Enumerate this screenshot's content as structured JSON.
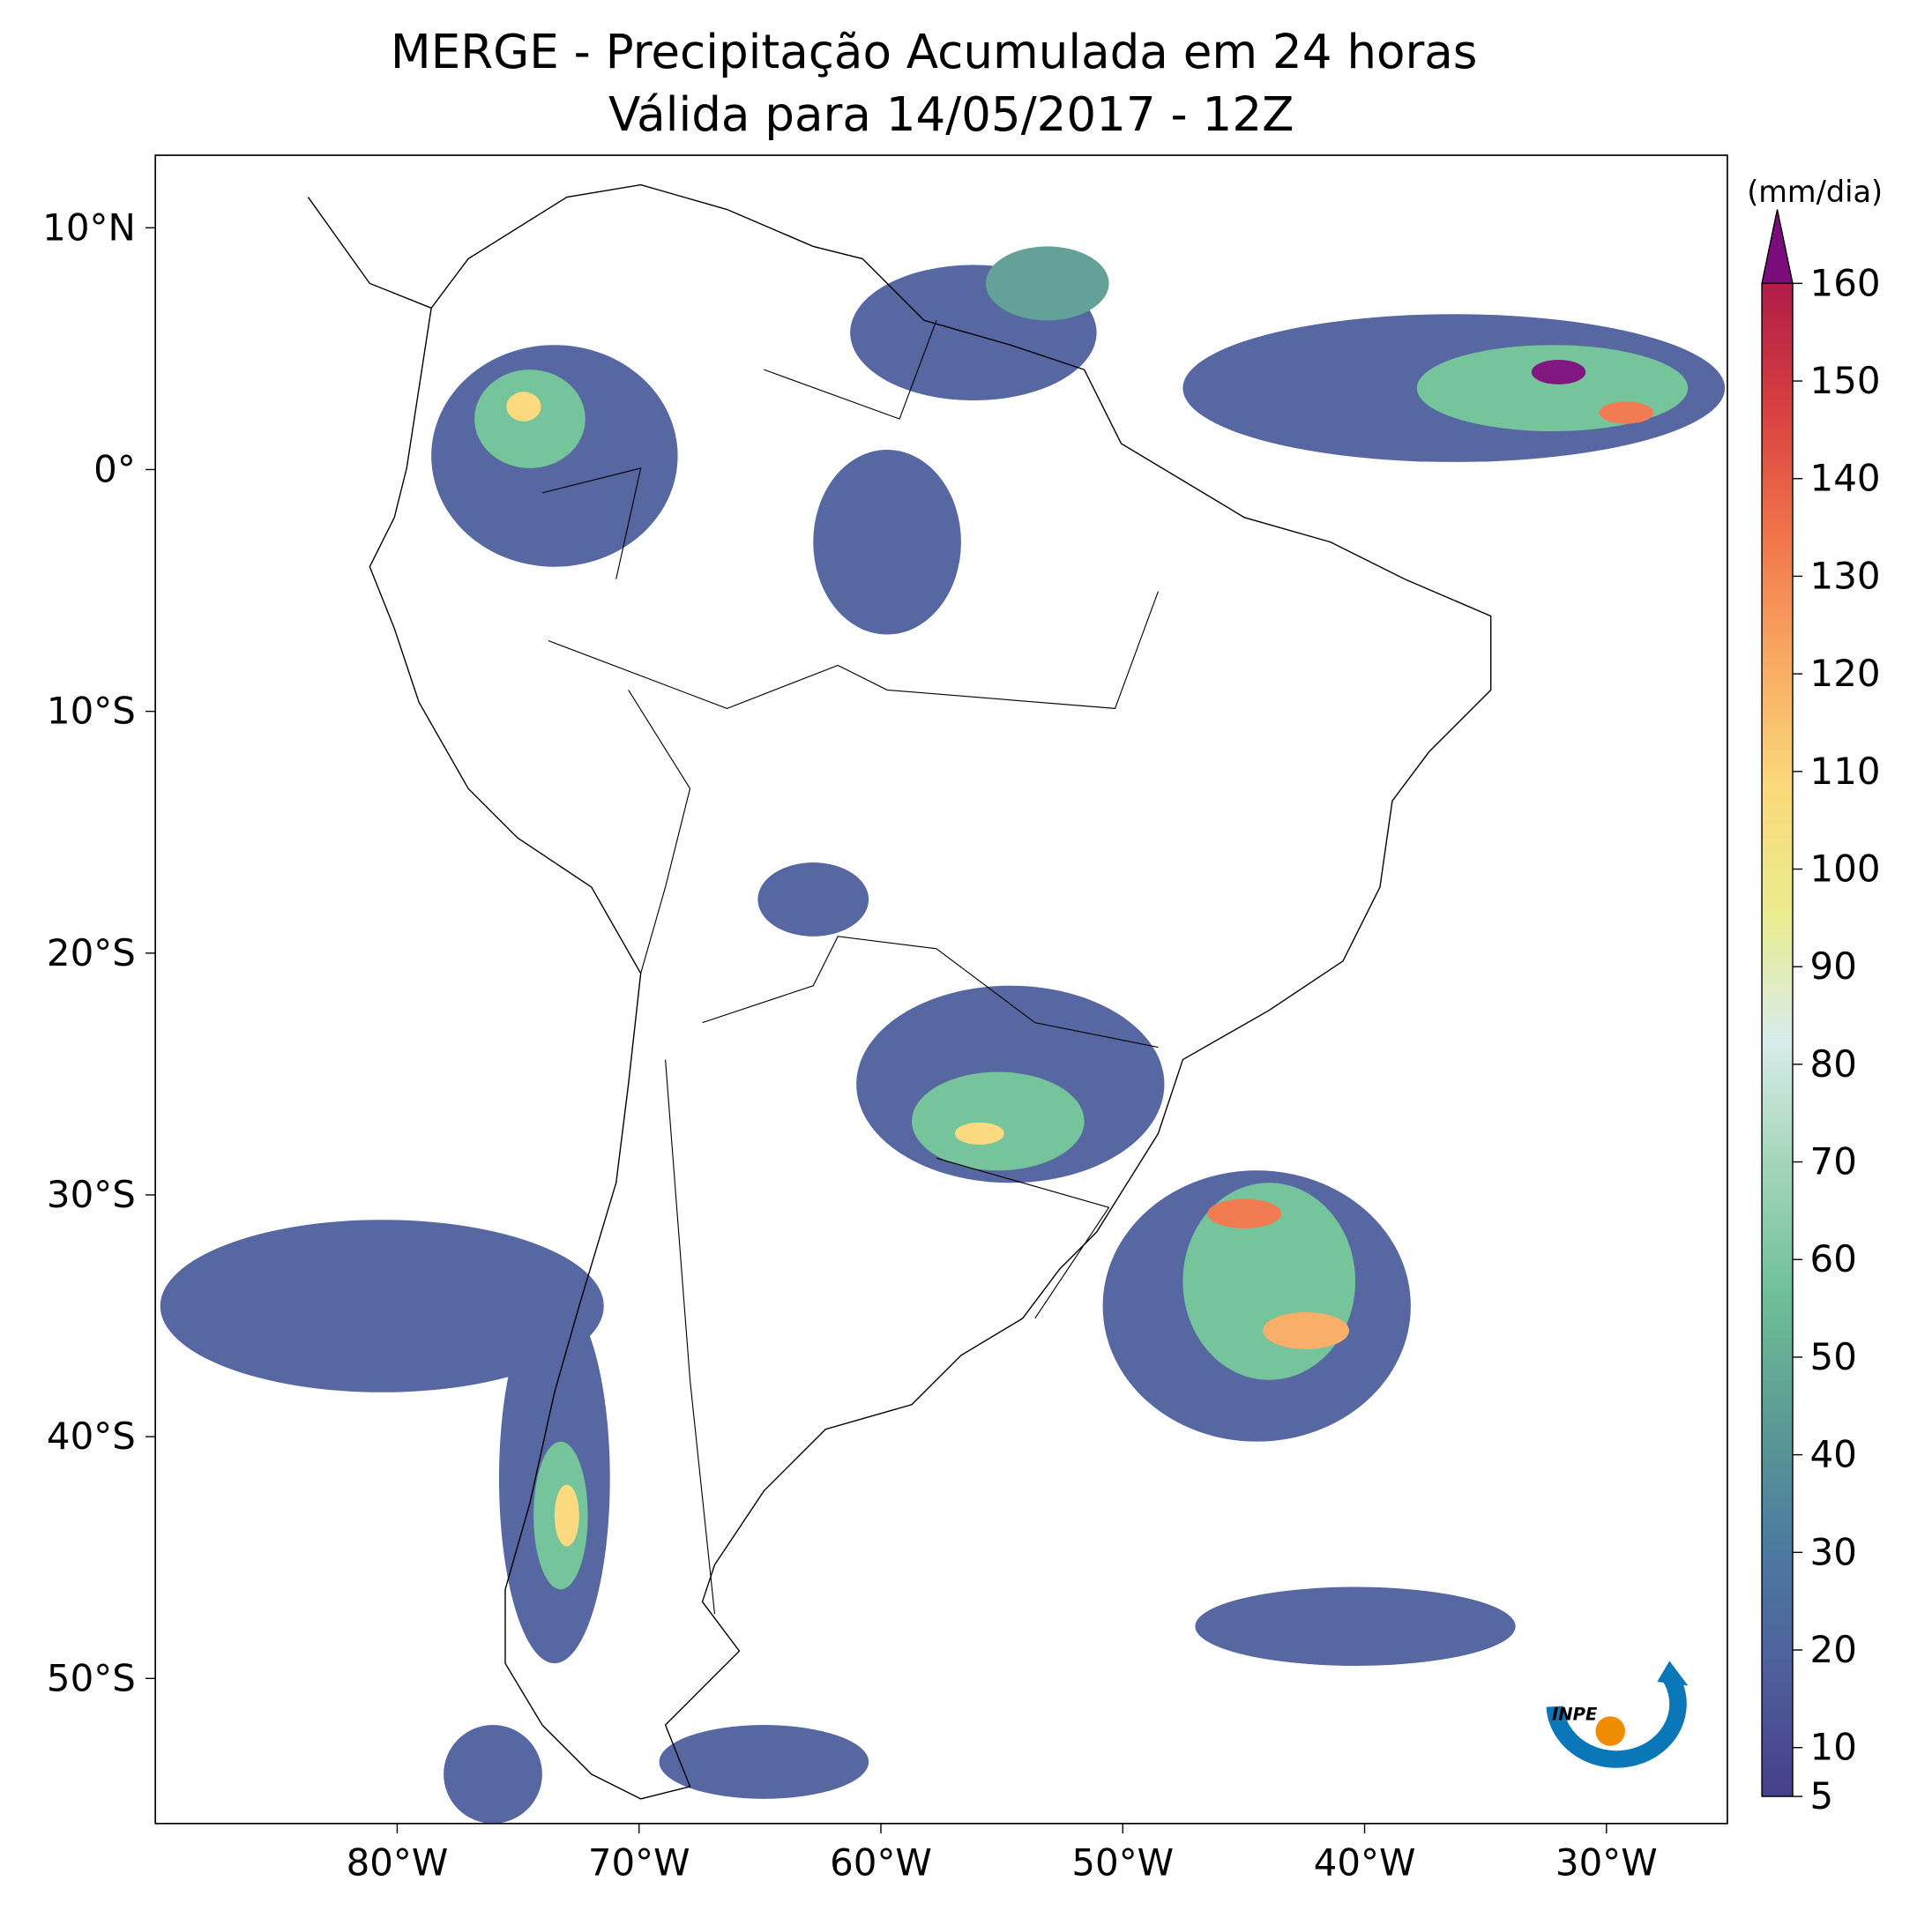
{
  "chart_data": {
    "type": "map",
    "title": "MERGE - Precipitação Acumulada em 24 horas",
    "subtitle": "Válida para 14/05/2017 - 12Z",
    "xlim": [
      -90,
      -25
    ],
    "ylim": [
      -56,
      13
    ],
    "xticks": [
      {
        "value": -80,
        "label": "80°W"
      },
      {
        "value": -70,
        "label": "70°W"
      },
      {
        "value": -60,
        "label": "60°W"
      },
      {
        "value": -50,
        "label": "50°W"
      },
      {
        "value": -40,
        "label": "40°W"
      },
      {
        "value": -30,
        "label": "30°W"
      }
    ],
    "yticks": [
      {
        "value": 10,
        "label": "10°N"
      },
      {
        "value": 0,
        "label": "0°"
      },
      {
        "value": -10,
        "label": "10°S"
      },
      {
        "value": -20,
        "label": "20°S"
      },
      {
        "value": -30,
        "label": "30°S"
      },
      {
        "value": -40,
        "label": "40°S"
      },
      {
        "value": -50,
        "label": "50°S"
      }
    ],
    "colorbar": {
      "label": "(mm/dia)",
      "lim": [
        5,
        160
      ],
      "ticks": [
        5,
        10,
        20,
        30,
        40,
        50,
        60,
        70,
        80,
        90,
        100,
        110,
        120,
        130,
        140,
        150,
        160
      ],
      "colors": [
        "#463e8c",
        "#4e5f9d",
        "#4b7ba0",
        "#5b9c94",
        "#6fc197",
        "#a3d6b9",
        "#d8ecea",
        "#eaec8e",
        "#fbd97a",
        "#f9aa62",
        "#f1744a",
        "#d8403f",
        "#b01c47"
      ],
      "extend_color": "#7b0c7b"
    },
    "logo_text": "INPE"
  }
}
